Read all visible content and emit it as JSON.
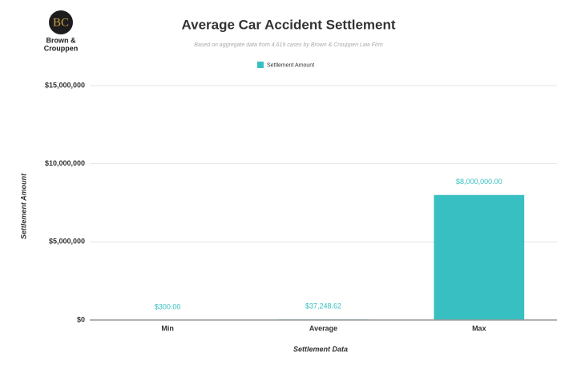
{
  "logo": {
    "initials": "BC",
    "name_lines": [
      "Brown &",
      "Crouppen"
    ]
  },
  "chart_data": {
    "type": "bar",
    "title": "Average Car Accident Settlement",
    "subtitle": "Based on aggregate data from 4,619 cases by Brown & Crouppen Law Firm",
    "x_label": "Settlement Data",
    "y_label": "Settlement Amount",
    "legend_position": "top",
    "series": [
      {
        "name": "Settlement Amount",
        "color": "#38bfc1",
        "values": [
          300,
          37248.62,
          8000000
        ],
        "value_labels": [
          "$300.00",
          "$37,248.62",
          "$8,000,000.00"
        ]
      }
    ],
    "categories": [
      "Min",
      "Average",
      "Max"
    ],
    "ylim": [
      0,
      15000000
    ],
    "yticks": [
      {
        "value": 0,
        "label": "$0"
      },
      {
        "value": 5000000,
        "label": "$5,000,000"
      },
      {
        "value": 10000000,
        "label": "$10,000,000"
      },
      {
        "value": 15000000,
        "label": "$15,000,000"
      }
    ],
    "grid": true
  }
}
